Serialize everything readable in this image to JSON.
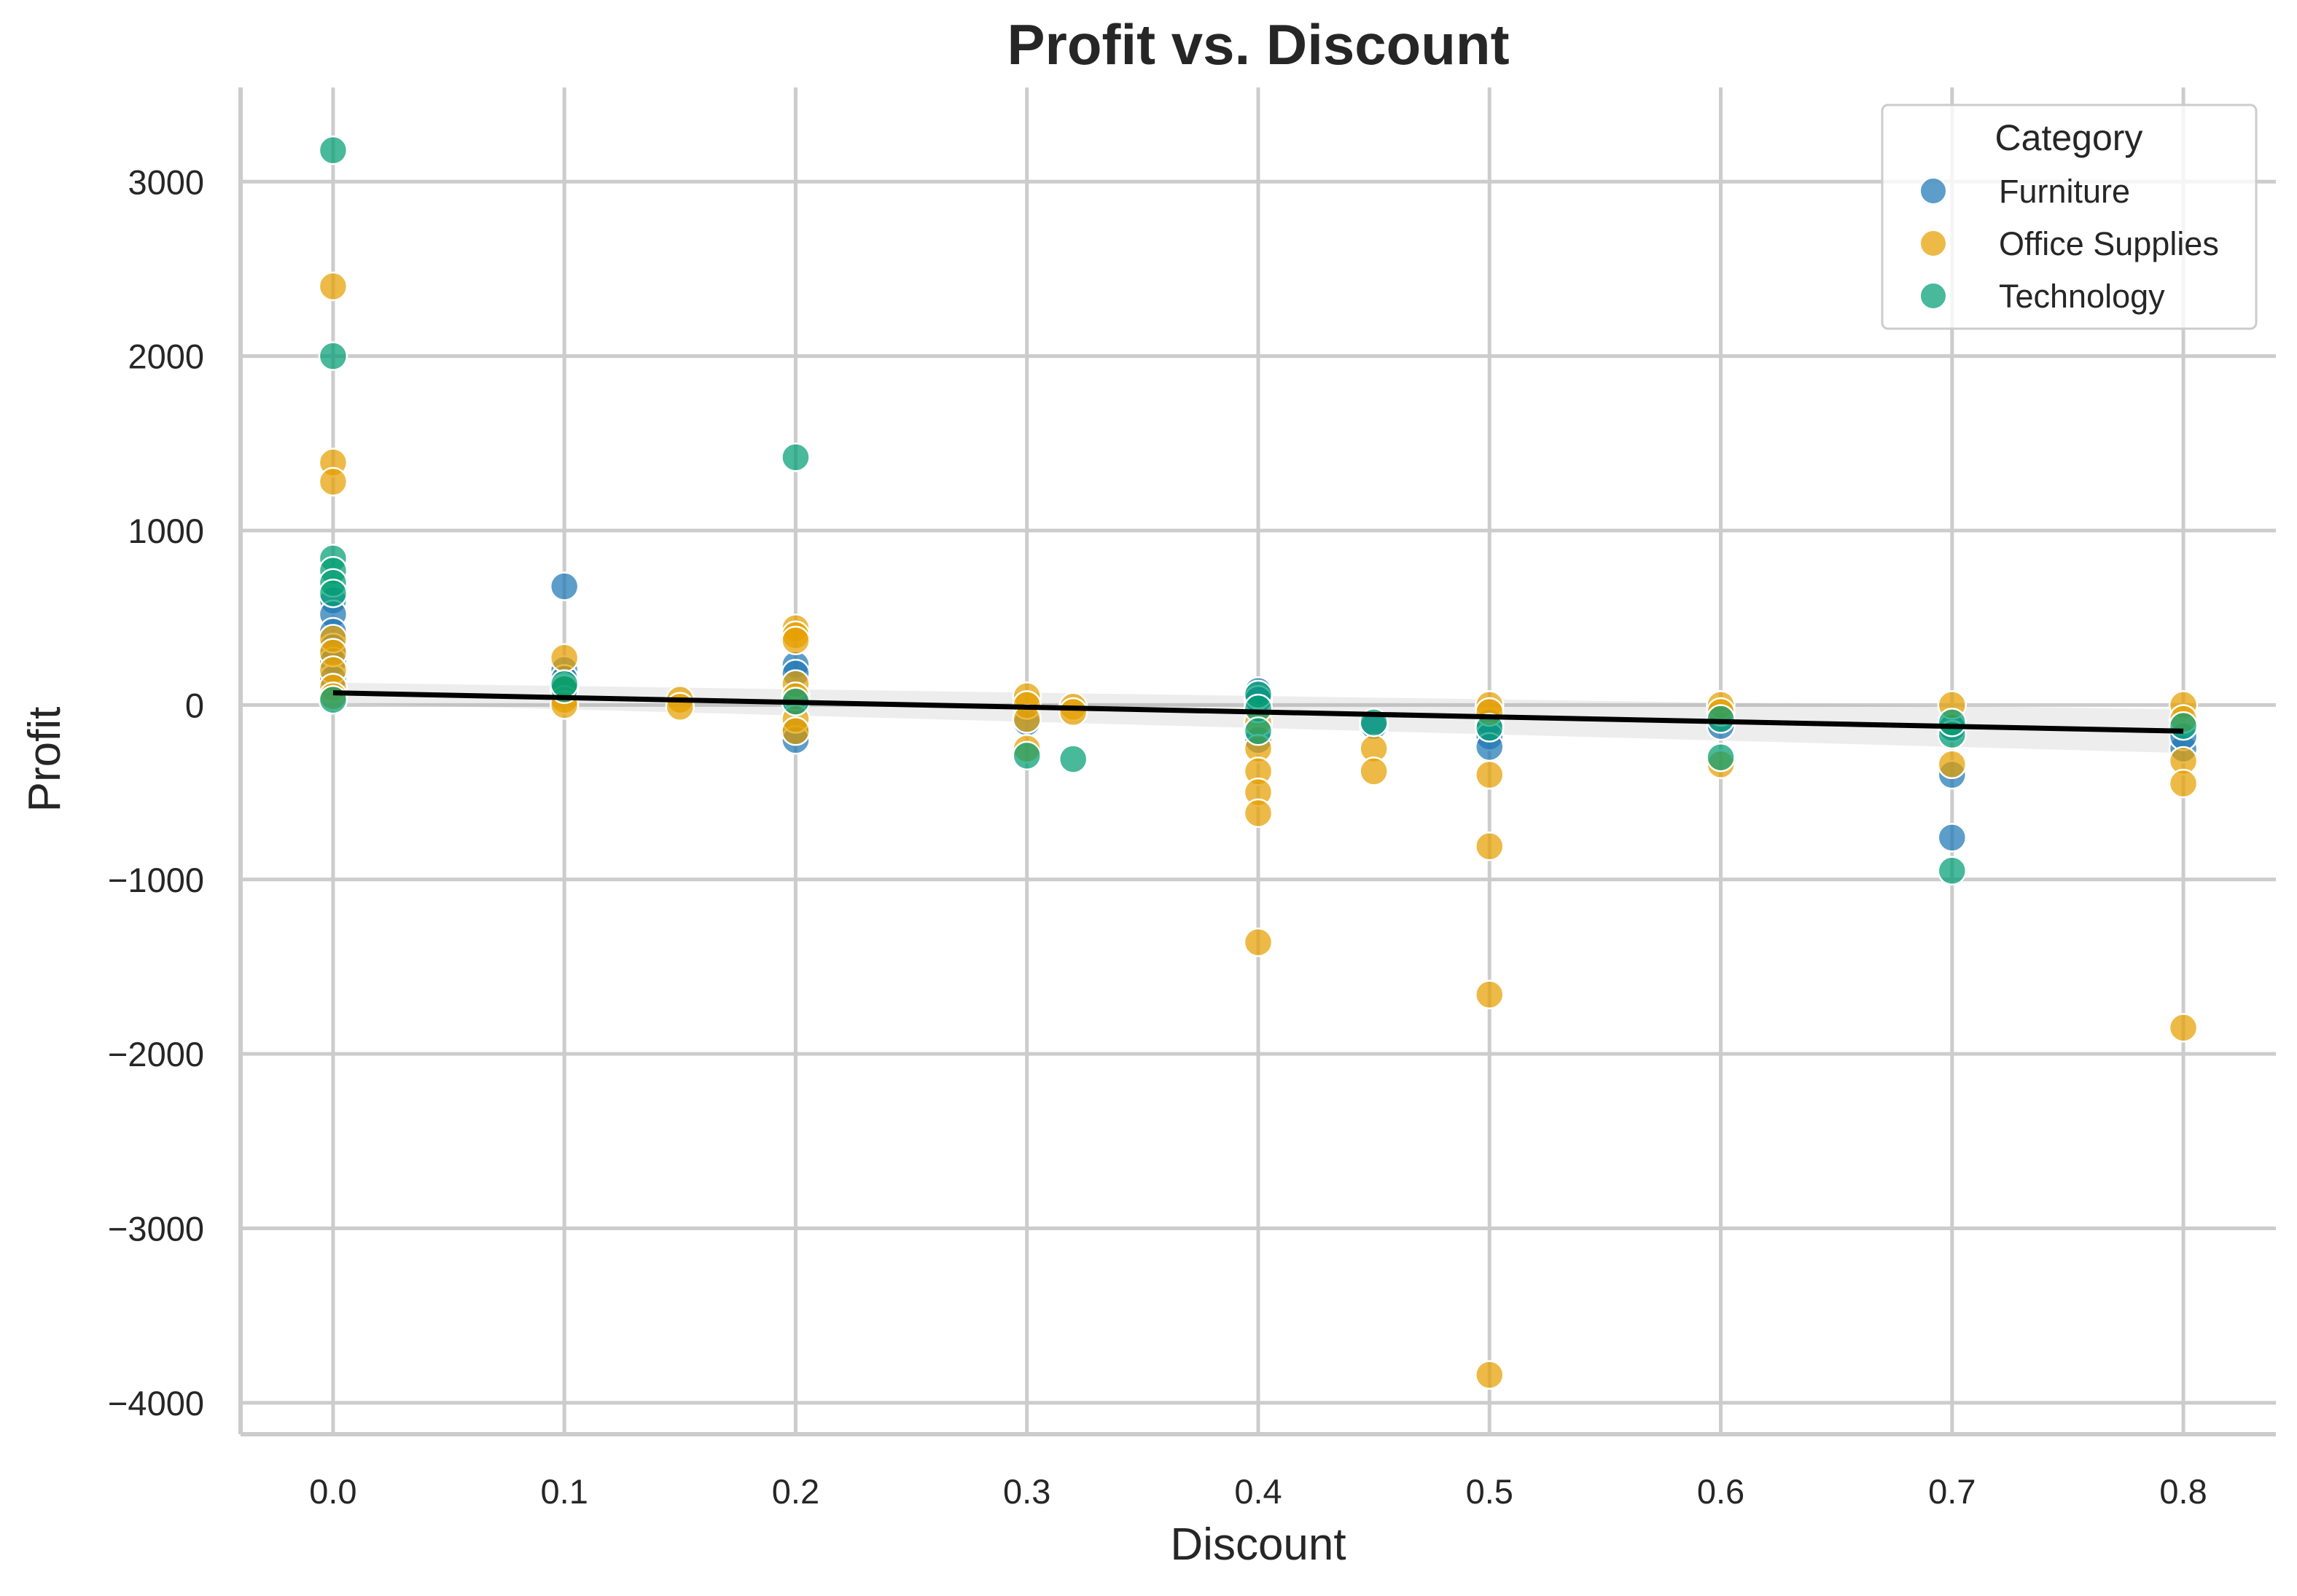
{
  "chart_data": {
    "type": "scatter",
    "title": "Profit vs. Discount",
    "xlabel": "Discount",
    "ylabel": "Profit",
    "xlim": [
      -0.04,
      0.84
    ],
    "ylim": [
      -4180,
      3540
    ],
    "xticks": [
      "0.0",
      "0.1",
      "0.2",
      "0.3",
      "0.4",
      "0.5",
      "0.6",
      "0.7",
      "0.8"
    ],
    "yticks": [
      "3000",
      "2000",
      "1000",
      "0",
      "−1000",
      "−2000",
      "−3000",
      "−4000"
    ],
    "grid": true,
    "legend": {
      "title": "Category",
      "position": "top-right"
    },
    "series": [
      {
        "name": "Furniture",
        "color": "#1f77b4",
        "points": [
          [
            0.0,
            600
          ],
          [
            0.0,
            520
          ],
          [
            0.0,
            420
          ],
          [
            0.0,
            330
          ],
          [
            0.0,
            250
          ],
          [
            0.0,
            150
          ],
          [
            0.1,
            680
          ],
          [
            0.1,
            200
          ],
          [
            0.1,
            150
          ],
          [
            0.1,
            90
          ],
          [
            0.2,
            230
          ],
          [
            0.2,
            180
          ],
          [
            0.2,
            20
          ],
          [
            0.2,
            -150
          ],
          [
            0.2,
            -200
          ],
          [
            0.3,
            -100
          ],
          [
            0.4,
            80
          ],
          [
            0.4,
            30
          ],
          [
            0.4,
            -200
          ],
          [
            0.45,
            -120
          ],
          [
            0.5,
            -100
          ],
          [
            0.5,
            -180
          ],
          [
            0.5,
            -240
          ],
          [
            0.6,
            -120
          ],
          [
            0.7,
            -400
          ],
          [
            0.7,
            -760
          ],
          [
            0.7,
            -130
          ],
          [
            0.8,
            -250
          ],
          [
            0.8,
            -180
          ]
        ]
      },
      {
        "name": "Office Supplies",
        "color": "#e69f00",
        "points": [
          [
            0.0,
            2400
          ],
          [
            0.0,
            1390
          ],
          [
            0.0,
            1280
          ],
          [
            0.0,
            380
          ],
          [
            0.0,
            300
          ],
          [
            0.0,
            200
          ],
          [
            0.0,
            100
          ],
          [
            0.0,
            50
          ],
          [
            0.1,
            270
          ],
          [
            0.1,
            100
          ],
          [
            0.1,
            30
          ],
          [
            0.1,
            0
          ],
          [
            0.15,
            30
          ],
          [
            0.15,
            -10
          ],
          [
            0.2,
            440
          ],
          [
            0.2,
            400
          ],
          [
            0.2,
            370
          ],
          [
            0.2,
            120
          ],
          [
            0.2,
            50
          ],
          [
            0.2,
            -80
          ],
          [
            0.2,
            -150
          ],
          [
            0.3,
            50
          ],
          [
            0.3,
            0
          ],
          [
            0.3,
            -80
          ],
          [
            0.3,
            -250
          ],
          [
            0.32,
            -10
          ],
          [
            0.32,
            -40
          ],
          [
            0.4,
            -100
          ],
          [
            0.4,
            -250
          ],
          [
            0.4,
            -380
          ],
          [
            0.4,
            -500
          ],
          [
            0.4,
            -620
          ],
          [
            0.4,
            -1360
          ],
          [
            0.45,
            -250
          ],
          [
            0.45,
            -380
          ],
          [
            0.5,
            0
          ],
          [
            0.5,
            -40
          ],
          [
            0.5,
            -400
          ],
          [
            0.5,
            -810
          ],
          [
            0.5,
            -1660
          ],
          [
            0.5,
            -3840
          ],
          [
            0.6,
            0
          ],
          [
            0.6,
            -40
          ],
          [
            0.6,
            -340
          ],
          [
            0.7,
            0
          ],
          [
            0.7,
            -340
          ],
          [
            0.8,
            0
          ],
          [
            0.8,
            -80
          ],
          [
            0.8,
            -320
          ],
          [
            0.8,
            -450
          ],
          [
            0.8,
            -1850
          ]
        ]
      },
      {
        "name": "Technology",
        "color": "#029e73",
        "points": [
          [
            0.0,
            3180
          ],
          [
            0.0,
            2000
          ],
          [
            0.0,
            840
          ],
          [
            0.0,
            770
          ],
          [
            0.0,
            700
          ],
          [
            0.0,
            640
          ],
          [
            0.0,
            30
          ],
          [
            0.1,
            90
          ],
          [
            0.1,
            120
          ],
          [
            0.2,
            1420
          ],
          [
            0.2,
            20
          ],
          [
            0.3,
            -290
          ],
          [
            0.32,
            -310
          ],
          [
            0.4,
            60
          ],
          [
            0.4,
            -20
          ],
          [
            0.4,
            -150
          ],
          [
            0.45,
            -100
          ],
          [
            0.5,
            -130
          ],
          [
            0.6,
            -300
          ],
          [
            0.6,
            -80
          ],
          [
            0.7,
            -950
          ],
          [
            0.7,
            -170
          ],
          [
            0.7,
            -100
          ],
          [
            0.8,
            -120
          ]
        ]
      }
    ],
    "trend_line": {
      "color": "#000000",
      "x": [
        0.0,
        0.8
      ],
      "y": [
        70,
        -150
      ]
    }
  }
}
